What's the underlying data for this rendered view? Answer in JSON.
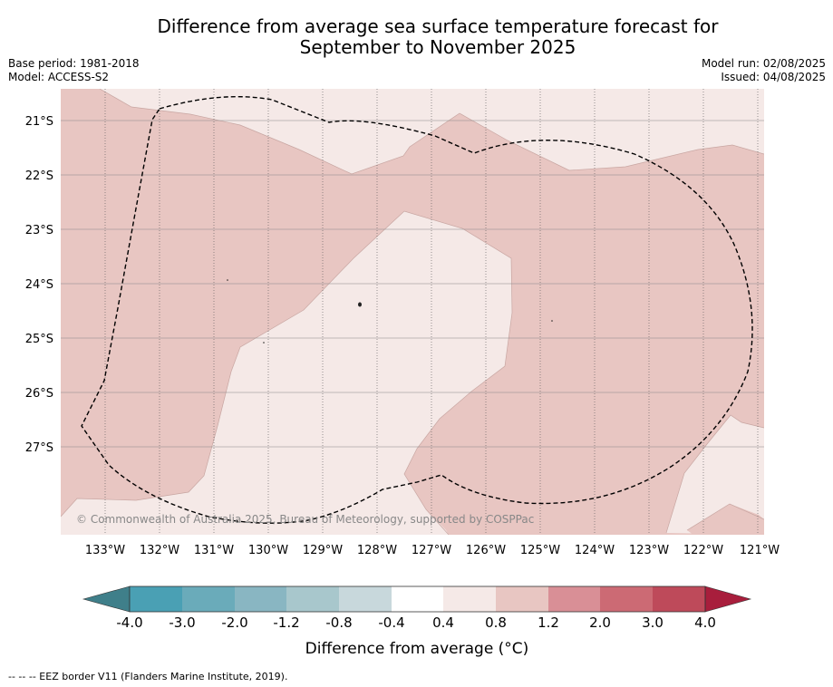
{
  "header": {
    "title_line1": "Difference from average sea surface temperature forecast for",
    "title_line2": "September to November 2025",
    "base_period": "Base period: 1981-2018",
    "model": "Model: ACCESS-S2",
    "model_run": "Model run: 02/08/2025",
    "issued": "Issued: 04/08/2025"
  },
  "map": {
    "latitude_labels": [
      "21°S",
      "22°S",
      "23°S",
      "24°S",
      "25°S",
      "26°S",
      "27°S"
    ],
    "longitude_labels": [
      "133°W",
      "132°W",
      "131°W",
      "130°W",
      "129°W",
      "128°W",
      "127°W",
      "126°W",
      "125°W",
      "124°W",
      "123°W",
      "122°W",
      "121°W"
    ],
    "watermark": "© Commonwealth of Australia 2025, Bureau of Meteorology, supported by COSPPac",
    "colors": {
      "band_0_4_to_0_8": "#f5e9e7",
      "band_0_8_to_1_2": "#e8c6c2",
      "eez_line": "#000000"
    }
  },
  "colorbar": {
    "tick_labels": [
      "-4.0",
      "-3.0",
      "-2.0",
      "-1.2",
      "-0.8",
      "-0.4",
      "0.4",
      "0.8",
      "1.2",
      "2.0",
      "3.0",
      "4.0"
    ],
    "colors": [
      "#3f7f8a",
      "#4aa0b4",
      "#6aabba",
      "#89b6c2",
      "#a8c7cc",
      "#c8d8dc",
      "#ffffff",
      "#f5e9e7",
      "#e8c6c2",
      "#d98f96",
      "#cc6a74",
      "#be4a5a",
      "#a81e3c"
    ],
    "title": "Difference from average (°C)"
  },
  "footer": {
    "legend_text": "--  --  -- EEZ border V11 (Flanders Marine Institute, 2019)."
  }
}
